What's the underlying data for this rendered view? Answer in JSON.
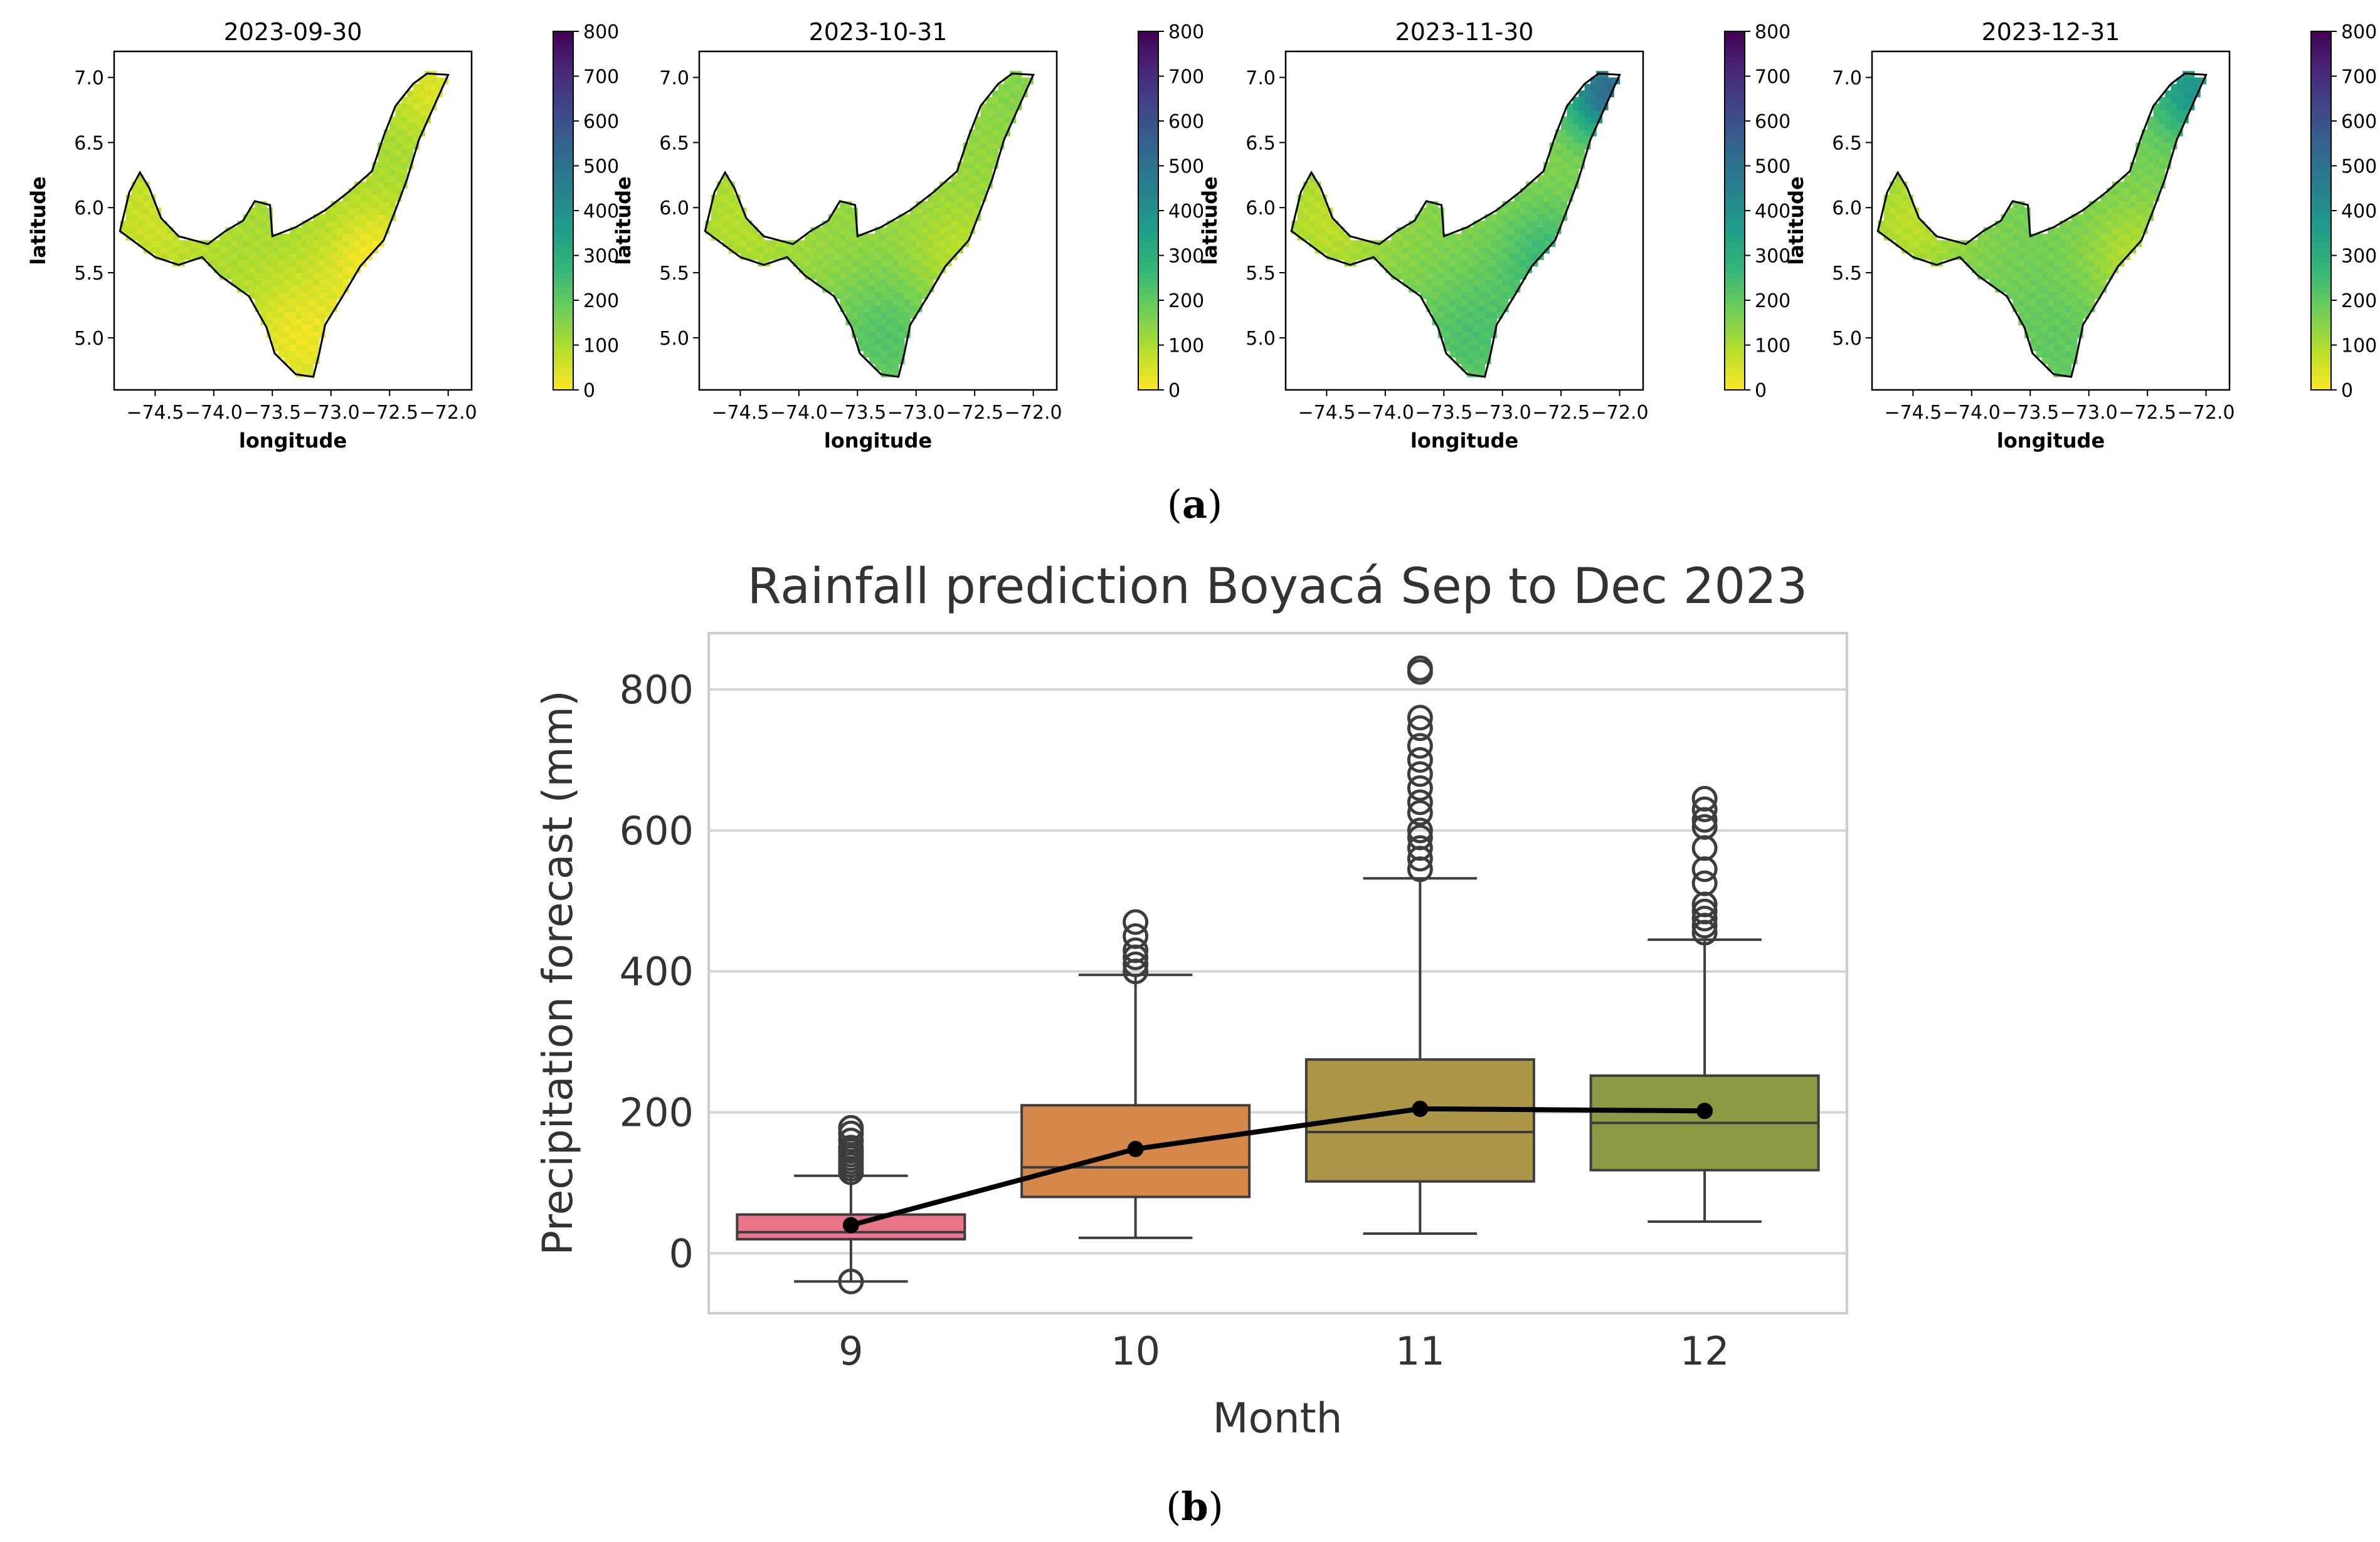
{
  "panel_a": {
    "label_open": "(",
    "label_letter": "a",
    "label_close": ")",
    "colorbar_ticks": [
      "0",
      "100",
      "200",
      "300",
      "400",
      "500",
      "600",
      "700",
      "800"
    ],
    "colorbar_range": [
      0,
      800
    ],
    "colormap": [
      "#fde725",
      "#b5de2b",
      "#6ece58",
      "#35b779",
      "#1f9e89",
      "#26828e",
      "#31688e",
      "#3e4989",
      "#482878",
      "#440154"
    ],
    "x_ticks": [
      "−74.5",
      "−74.0",
      "−73.5",
      "−73.0",
      "−72.5",
      "−72.0"
    ],
    "y_ticks": [
      "5.0",
      "5.5",
      "6.0",
      "6.5",
      "7.0"
    ],
    "x_range": [
      -74.85,
      -71.8
    ],
    "y_range": [
      4.6,
      7.2
    ],
    "xlabel": "longitude",
    "ylabel": "latitude",
    "maps": [
      {
        "title": "2023-09-30",
        "base_mm": 110,
        "west_mm": 60,
        "south_mm": 20,
        "east_mm": 10,
        "ne_mm": 40
      },
      {
        "title": "2023-10-31",
        "base_mm": 130,
        "west_mm": 90,
        "south_mm": 220,
        "east_mm": 80,
        "ne_mm": 150
      },
      {
        "title": "2023-11-30",
        "base_mm": 150,
        "west_mm": 80,
        "south_mm": 230,
        "east_mm": 260,
        "ne_mm": 520
      },
      {
        "title": "2023-12-31",
        "base_mm": 170,
        "west_mm": 80,
        "south_mm": 200,
        "east_mm": 90,
        "ne_mm": 380
      }
    ]
  },
  "chart_data": {
    "type": "box",
    "title": "Rainfall prediction Boyacá Sep to Dec 2023",
    "xlabel": "Month",
    "ylabel": "Precipitation forecast (mm)",
    "categories": [
      "9",
      "10",
      "11",
      "12"
    ],
    "ylim": [
      -85,
      880
    ],
    "yticks": [
      0,
      200,
      400,
      600,
      800
    ],
    "grid": "horizontal",
    "boxes": [
      {
        "month": "9",
        "color": "#e8758a",
        "whisker_low": -40,
        "q1": 20,
        "median": 30,
        "q3": 55,
        "whisker_high": 110,
        "outliers": [
          -40,
          115,
          120,
          125,
          130,
          135,
          140,
          145,
          150,
          160,
          170,
          178
        ]
      },
      {
        "month": "10",
        "color": "#d5884a",
        "whisker_low": 22,
        "q1": 80,
        "median": 122,
        "q3": 210,
        "whisker_high": 395,
        "outliers": [
          400,
          410,
          420,
          430,
          450,
          470
        ]
      },
      {
        "month": "11",
        "color": "#ad9647",
        "whisker_low": 28,
        "q1": 102,
        "median": 172,
        "q3": 275,
        "whisker_high": 532,
        "outliers": [
          545,
          560,
          575,
          590,
          600,
          625,
          640,
          660,
          680,
          700,
          720,
          745,
          760,
          825,
          830
        ]
      },
      {
        "month": "12",
        "color": "#8c9a45",
        "whisker_low": 45,
        "q1": 118,
        "median": 185,
        "q3": 252,
        "whisker_high": 445,
        "outliers": [
          455,
          465,
          475,
          485,
          495,
          525,
          545,
          575,
          605,
          615,
          630,
          645
        ]
      }
    ],
    "mean_line": {
      "name": "mean",
      "values": [
        40,
        148,
        205,
        202
      ]
    }
  },
  "panel_b": {
    "label_open": "(",
    "label_letter": "b",
    "label_close": ")"
  }
}
